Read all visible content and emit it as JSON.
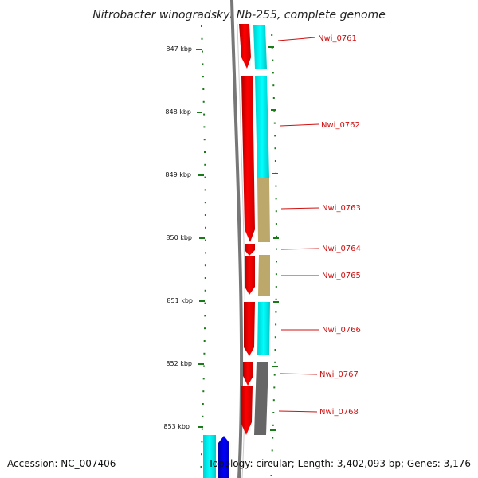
{
  "title": "Nitrobacter winogradskyi Nb-255, complete genome",
  "footer": {
    "accession": "Accession: NC_007406",
    "topology": "Topology: circular; Length: 3,402,093 bp; Genes: 3,176"
  },
  "ruler": {
    "ticks": [
      "847 kbp",
      "848 kbp",
      "849 kbp",
      "850 kbp",
      "851 kbp",
      "852 kbp",
      "853 kbp"
    ]
  },
  "genes": [
    {
      "label": "Nwi_0761",
      "strand_color": "#ff0000",
      "cog_color": "#00ffff"
    },
    {
      "label": "Nwi_0762",
      "strand_color": "#ff0000",
      "cog_color": "#00ffff"
    },
    {
      "label": "Nwi_0763",
      "strand_color": "#ff0000",
      "cog_color": "#bca86a"
    },
    {
      "label": "Nwi_0764",
      "strand_color": "#ff0000",
      "cog_color": "#ffffff"
    },
    {
      "label": "Nwi_0765",
      "strand_color": "#ff0000",
      "cog_color": "#bca86a"
    },
    {
      "label": "Nwi_0766",
      "strand_color": "#ff0000",
      "cog_color": "#00ffff"
    },
    {
      "label": "Nwi_0767",
      "strand_color": "#ff0000",
      "cog_color": "#666666"
    },
    {
      "label": "Nwi_0768",
      "strand_color": "#ff0000",
      "cog_color": "#666666"
    }
  ],
  "colors": {
    "forward_strand": "#ff0000",
    "reverse_strand": "#0000ff",
    "tick": "#1a7a1a",
    "backbone": "#888888",
    "label": "#d01010"
  }
}
